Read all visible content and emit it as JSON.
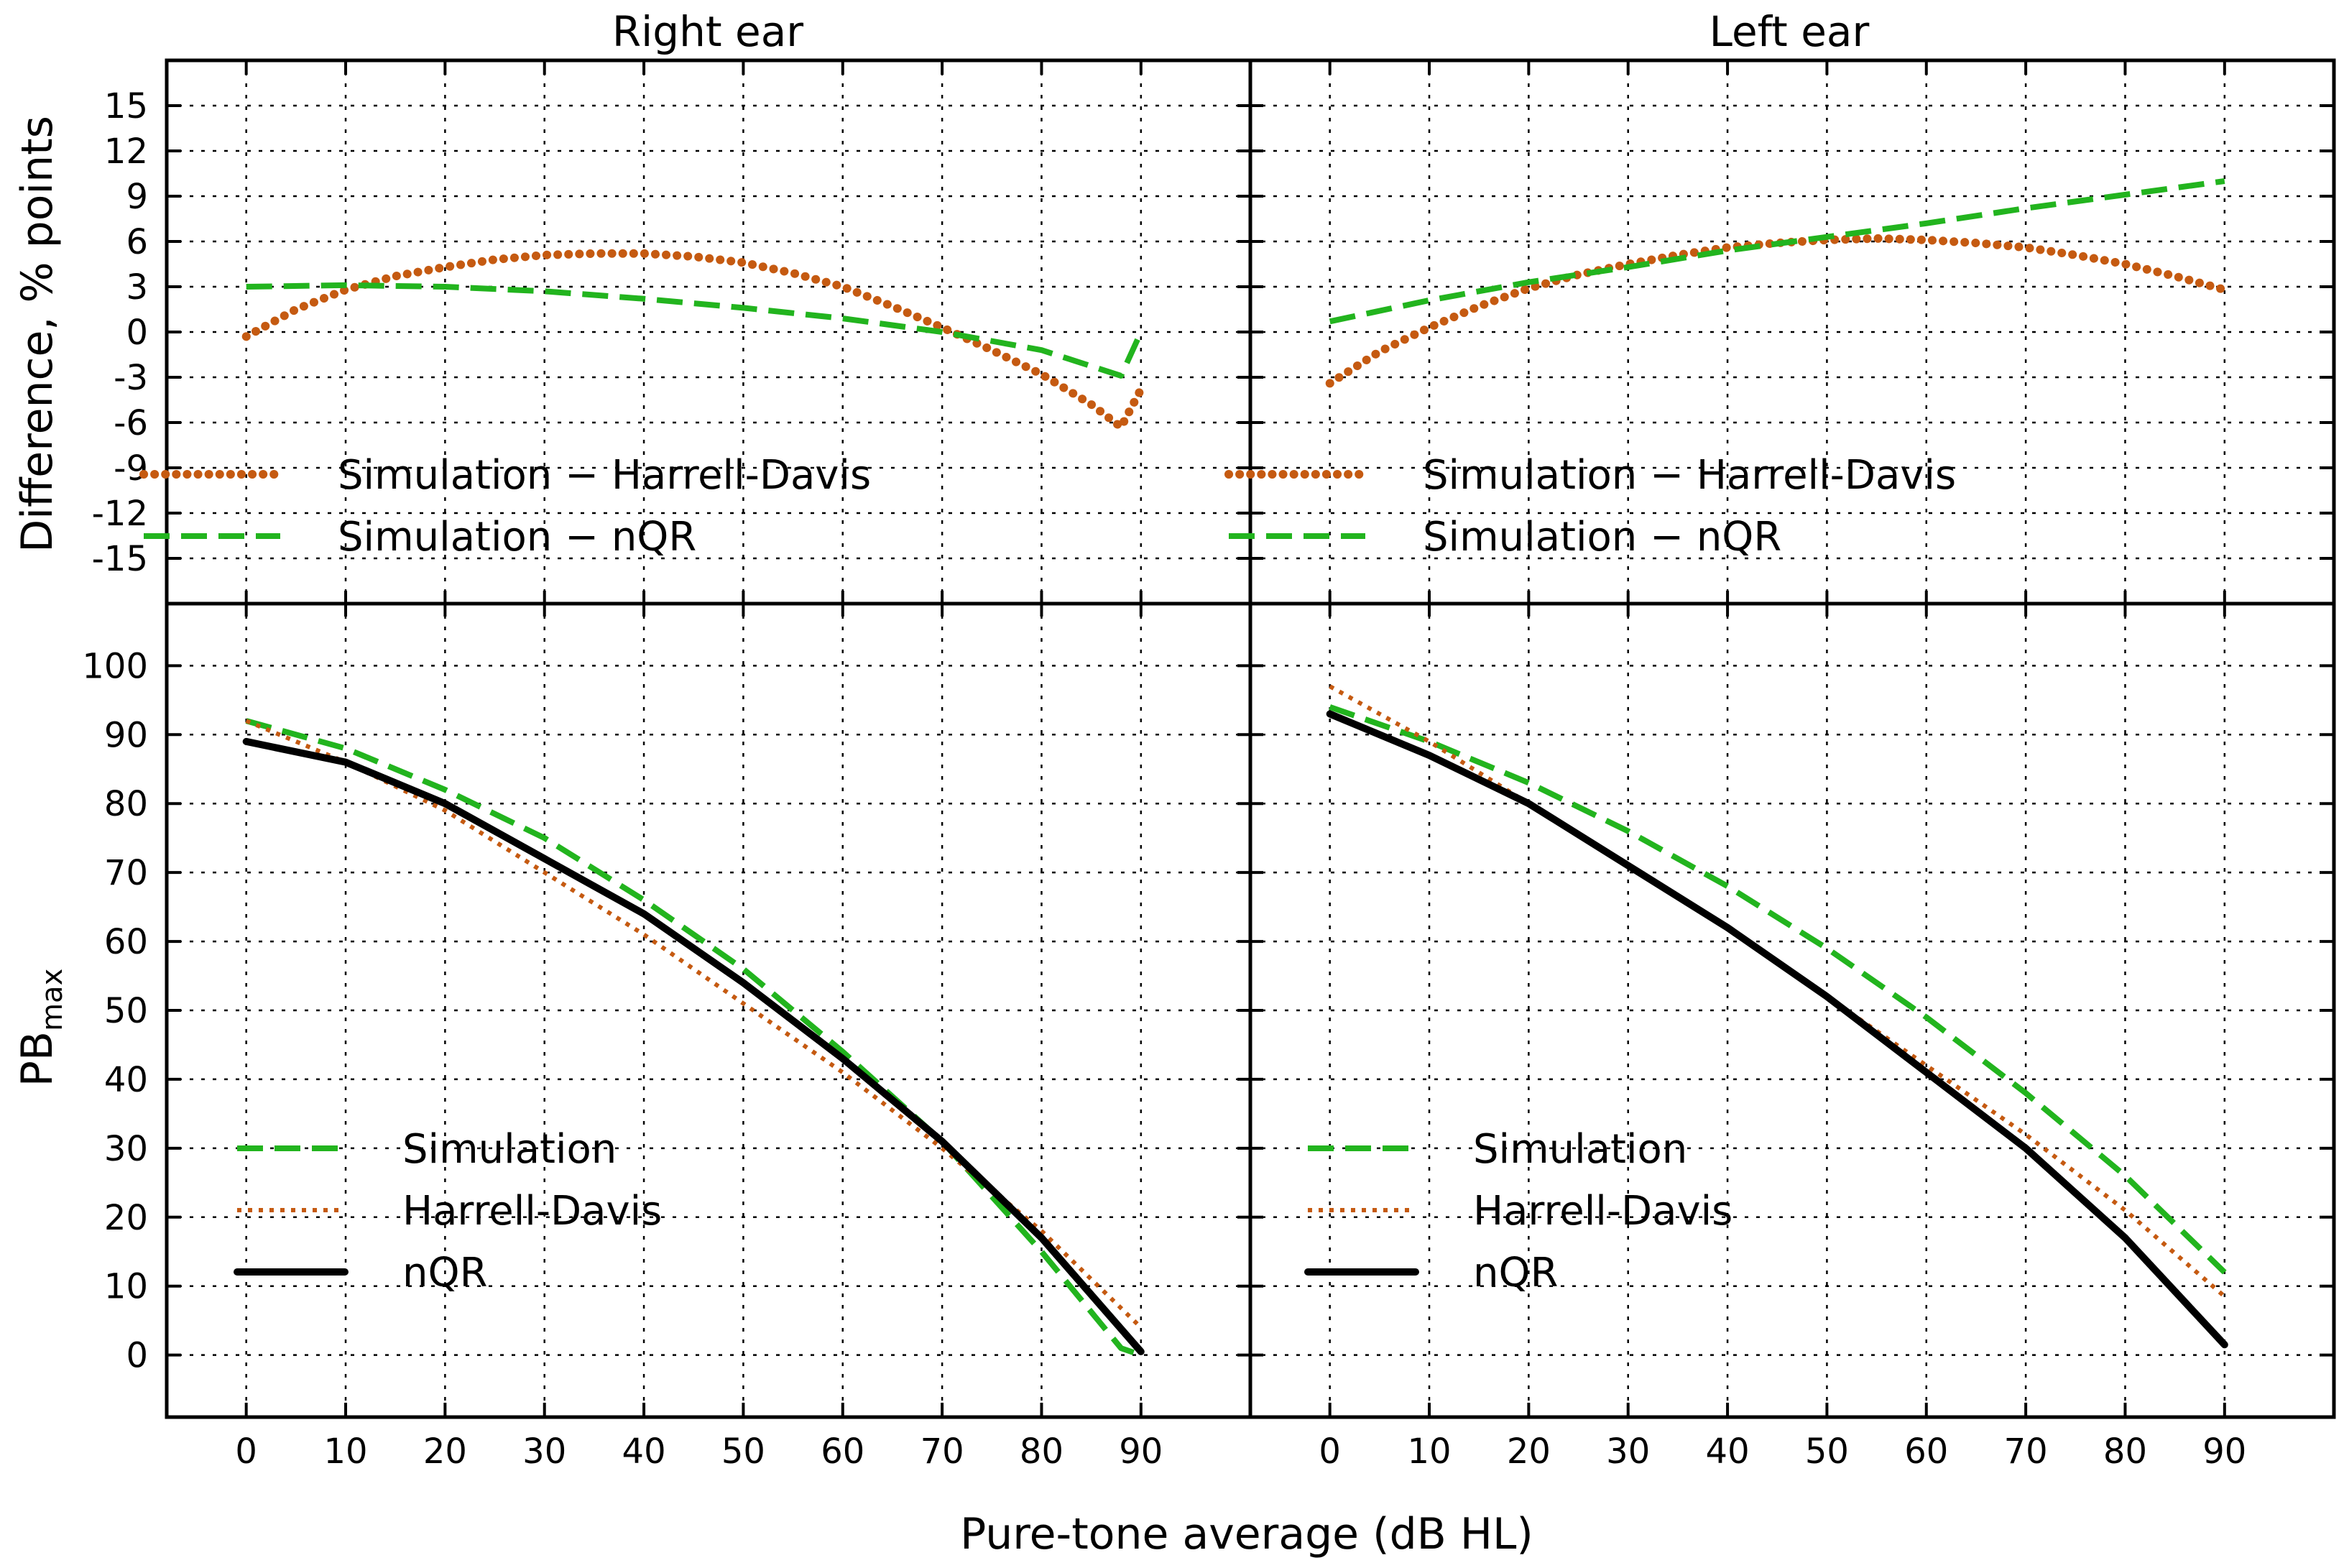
{
  "chart_data": {
    "type": "line",
    "layout": "2 rows x 2 columns, shared x axis",
    "column_titles": [
      "Right ear",
      "Left ear"
    ],
    "xlabel": "Pure-tone average (dB HL)",
    "xlim": [
      -8,
      101
    ],
    "x_ticks": [
      0,
      10,
      20,
      30,
      40,
      50,
      60,
      70,
      80,
      90
    ],
    "x_tick_labels": [
      "0",
      "10",
      "20",
      "30",
      "40",
      "50",
      "60",
      "70",
      "80",
      "90"
    ],
    "top_row": {
      "ylabel": "Difference, % points",
      "ylim": [
        -18,
        18
      ],
      "y_ticks": [
        -15,
        -12,
        -9,
        -6,
        -3,
        0,
        3,
        6,
        9,
        12,
        15
      ],
      "y_tick_labels": [
        "-15",
        "-12",
        "-9",
        "-6",
        "-3",
        "0",
        "3",
        "6",
        "9",
        "12",
        "15"
      ],
      "legend": [
        {
          "label": "Simulation − Harrell-Davis",
          "color": "#c55a11",
          "style": "dotted-heavy"
        },
        {
          "label": "Simulation − nQR",
          "color": "#22b41e",
          "style": "dashed"
        }
      ]
    },
    "bottom_row": {
      "ylabel_main": "PB",
      "ylabel_sub": "max",
      "ylim": [
        -9,
        109
      ],
      "y_ticks": [
        0,
        10,
        20,
        30,
        40,
        50,
        60,
        70,
        80,
        90,
        100
      ],
      "y_tick_labels": [
        "0",
        "10",
        "20",
        "30",
        "40",
        "50",
        "60",
        "70",
        "80",
        "90",
        "100"
      ],
      "legend": [
        {
          "label": "Simulation",
          "color": "#22b41e",
          "style": "dashed"
        },
        {
          "label": "Harrell-Davis",
          "color": "#c55a11",
          "style": "dotted"
        },
        {
          "label": "nQR",
          "color": "#000000",
          "style": "solid"
        }
      ]
    },
    "panels": [
      {
        "name": "right-difference",
        "series": [
          {
            "name": "Simulation − Harrell-Davis",
            "x": [
              0,
              5,
              10,
              15,
              20,
              25,
              30,
              35,
              40,
              45,
              50,
              55,
              60,
              65,
              70,
              75,
              80,
              85,
              88,
              90
            ],
            "y": [
              -0.3,
              1.5,
              2.8,
              3.7,
              4.3,
              4.8,
              5.1,
              5.2,
              5.2,
              5.0,
              4.6,
              3.9,
              3.0,
              1.7,
              0.3,
              -1.2,
              -2.8,
              -4.8,
              -6.3,
              -3.8
            ]
          },
          {
            "name": "Simulation − nQR",
            "x": [
              0,
              10,
              20,
              30,
              40,
              50,
              60,
              70,
              80,
              88,
              90
            ],
            "y": [
              3.0,
              3.1,
              3.0,
              2.7,
              2.2,
              1.6,
              0.9,
              0.0,
              -1.2,
              -2.9,
              0.0
            ]
          }
        ]
      },
      {
        "name": "left-difference",
        "series": [
          {
            "name": "Simulation − Harrell-Davis",
            "x": [
              0,
              5,
              10,
              15,
              20,
              25,
              30,
              35,
              40,
              45,
              50,
              55,
              60,
              65,
              70,
              75,
              80,
              85,
              90
            ],
            "y": [
              -3.4,
              -1.3,
              0.3,
              1.7,
              2.9,
              3.8,
              4.5,
              5.1,
              5.6,
              5.9,
              6.1,
              6.2,
              6.1,
              5.9,
              5.6,
              5.1,
              4.5,
              3.7,
              2.8
            ]
          },
          {
            "name": "Simulation − nQR",
            "x": [
              0,
              10,
              20,
              30,
              40,
              50,
              60,
              70,
              80,
              90
            ],
            "y": [
              0.7,
              2.1,
              3.3,
              4.3,
              5.4,
              6.3,
              7.2,
              8.2,
              9.1,
              10.0
            ]
          }
        ]
      },
      {
        "name": "right-pbmax",
        "series": [
          {
            "name": "Simulation",
            "x": [
              0,
              10,
              20,
              30,
              40,
              50,
              60,
              70,
              80,
              88,
              90
            ],
            "y": [
              92,
              88,
              82,
              75,
              66,
              56,
              44,
              31,
              15,
              1,
              0
            ]
          },
          {
            "name": "Harrell-Davis",
            "x": [
              0,
              10,
              20,
              30,
              40,
              50,
              60,
              70,
              80,
              90
            ],
            "y": [
              92,
              86,
              79,
              70,
              61,
              51,
              41,
              30,
              18,
              4
            ]
          },
          {
            "name": "nQR",
            "x": [
              0,
              10,
              20,
              30,
              40,
              50,
              60,
              70,
              80,
              90
            ],
            "y": [
              89,
              86,
              80,
              72,
              64,
              54,
              43,
              31,
              17,
              0.5
            ]
          }
        ]
      },
      {
        "name": "left-pbmax",
        "series": [
          {
            "name": "Simulation",
            "x": [
              0,
              10,
              20,
              30,
              40,
              50,
              60,
              70,
              80,
              90
            ],
            "y": [
              94,
              89,
              83,
              76,
              68,
              59,
              49,
              38,
              26,
              12
            ]
          },
          {
            "name": "Harrell-Davis",
            "x": [
              0,
              10,
              20,
              30,
              40,
              50,
              60,
              70,
              80,
              90
            ],
            "y": [
              97,
              89,
              80,
              71,
              62,
              52,
              42,
              32,
              21,
              8.5
            ]
          },
          {
            "name": "nQR",
            "x": [
              0,
              10,
              20,
              30,
              40,
              50,
              60,
              70,
              80,
              90
            ],
            "y": [
              93,
              87,
              80,
              71,
              62,
              52,
              41,
              30,
              17,
              1.5
            ]
          }
        ]
      }
    ]
  }
}
